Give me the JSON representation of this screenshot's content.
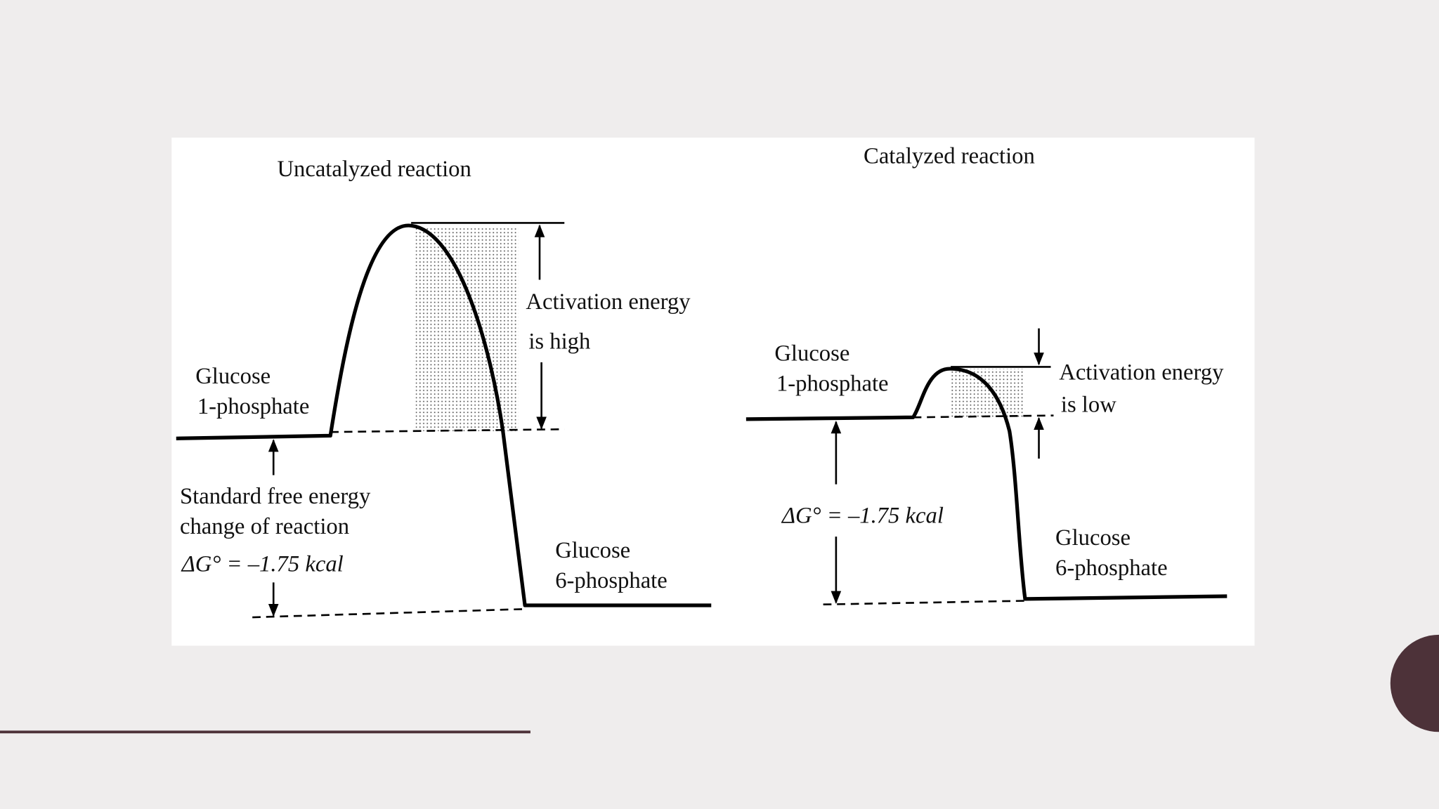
{
  "diagrams": [
    {
      "title": "Uncatalyzed reaction",
      "reactant": [
        "Glucose",
        "1-phosphate"
      ],
      "activation": [
        "Activation energy",
        "is high"
      ],
      "free_energy": [
        "Standard free energy",
        "change of reaction"
      ],
      "delta_g": "ΔG° = –1.75 kcal",
      "product": [
        "Glucose",
        "6-phosphate"
      ]
    },
    {
      "title": "Catalyzed reaction",
      "reactant": [
        "Glucose",
        "1-phosphate"
      ],
      "activation": [
        "Activation energy",
        "is low"
      ],
      "delta_g": "ΔG° = –1.75 kcal",
      "product": [
        "Glucose",
        "6-phosphate"
      ]
    }
  ]
}
